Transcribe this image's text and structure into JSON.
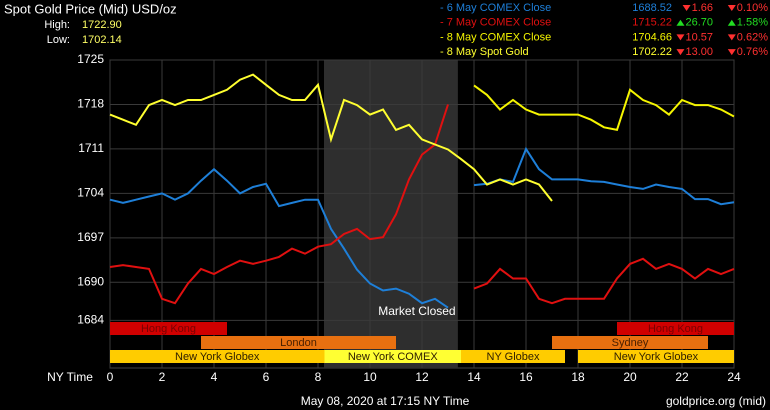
{
  "title": "Spot Gold Price (Mid) USD/oz",
  "high": {
    "label": "High:",
    "value": "1722.90"
  },
  "low": {
    "label": "Low:",
    "value": "1702.14"
  },
  "footer": {
    "timestamp": "May 08, 2020 at 17:15 NY Time",
    "source": "goldprice.org (mid)"
  },
  "chart_data": {
    "type": "line",
    "xlabel": "NY Time",
    "x": [
      0,
      0.5,
      1,
      1.5,
      2,
      2.5,
      3,
      3.5,
      4,
      4.5,
      5,
      5.5,
      6,
      6.5,
      7,
      7.5,
      8,
      8.5,
      9,
      9.5,
      10,
      10.5,
      11,
      11.5,
      12,
      12.5,
      13,
      13.5,
      14,
      14.5,
      15,
      15.5,
      16,
      16.5,
      17,
      17.5,
      18,
      18.5,
      19,
      19.5,
      20,
      20.5,
      21,
      21.5,
      22,
      22.5,
      23,
      23.5,
      24
    ],
    "xlim": [
      0,
      24
    ],
    "xticks": [
      0,
      2,
      4,
      6,
      8,
      10,
      12,
      14,
      16,
      18,
      20,
      22,
      24
    ],
    "ylim": [
      1676.5,
      1725
    ],
    "yticks": [
      1684,
      1690,
      1697,
      1704,
      1711,
      1718,
      1725
    ],
    "grid": true,
    "series": [
      {
        "name": "- 6 May COMEX Close",
        "color": "#1e7fd8",
        "price": "1688.52",
        "change": {
          "value": -1.66,
          "label": "1.66"
        },
        "percent": {
          "value": -0.1,
          "label": "0.10%"
        },
        "values": [
          1703,
          1702.5,
          1703,
          1703.5,
          1704,
          1703,
          1704,
          1706,
          1707.8,
          1706,
          1704,
          1705,
          1705.5,
          1702,
          1702.5,
          1703,
          1703,
          1698.4,
          1695.3,
          1692,
          1689.8,
          1688.7,
          1689,
          1688.2,
          1686.7,
          1687.4,
          1686,
          null,
          1705.3,
          1705.5,
          1706.2,
          1705.8,
          1711,
          1707.8,
          1706.2,
          1706.2,
          1706.2,
          1705.9,
          1705.8,
          1705.4,
          1705,
          1704.7,
          1705.4,
          1705,
          1704.7,
          1703.1,
          1703.1,
          1702.3,
          1702.6
        ]
      },
      {
        "name": "- 7 May COMEX Close",
        "color": "#e01010",
        "price": "1715.22",
        "change": {
          "value": 26.7,
          "label": "26.70"
        },
        "percent": {
          "value": 1.58,
          "label": "1.58%"
        },
        "values": [
          1692.4,
          1692.7,
          1692.4,
          1692.1,
          1687.4,
          1686.7,
          1689.8,
          1692.1,
          1691.3,
          1692.4,
          1693.4,
          1692.9,
          1693.4,
          1694,
          1695.3,
          1694.5,
          1695.6,
          1696,
          1697.6,
          1698.4,
          1696.8,
          1697.1,
          1700.7,
          1706.2,
          1710.1,
          1711.7,
          1718,
          null,
          1689,
          1689.8,
          1692.1,
          1690.6,
          1690.6,
          1687.4,
          1686.7,
          1687.4,
          1687.4,
          1687.4,
          1687.4,
          1690.6,
          1692.9,
          1693.7,
          1692.1,
          1692.9,
          1692.1,
          1690.6,
          1692.1,
          1691.3,
          1692.1
        ]
      },
      {
        "name": "- 8 May COMEX Close",
        "color": "#f5f500",
        "price": "1704.66",
        "change": {
          "value": -10.57,
          "label": "10.57"
        },
        "percent": {
          "value": -0.62,
          "label": "0.62%"
        },
        "values": [
          null,
          null,
          null,
          null,
          null,
          null,
          null,
          null,
          null,
          null,
          null,
          null,
          null,
          null,
          null,
          null,
          null,
          null,
          null,
          null,
          null,
          null,
          null,
          null,
          null,
          null,
          null,
          null,
          1721,
          1719.5,
          1717.2,
          1718.7,
          1717.2,
          1716.4,
          1716.4,
          1716.4,
          1716.4,
          1715.6,
          1714.4,
          1714,
          1720.3,
          1718.7,
          1717.9,
          1716.4,
          1718.7,
          1717.9,
          1717.9,
          1717.2,
          1716.1
        ]
      },
      {
        "name": "- 8 May Spot Gold",
        "color": "#ffff30",
        "price": "1702.22",
        "change": {
          "value": -13.0,
          "label": "13.00"
        },
        "percent": {
          "value": -0.76,
          "label": "0.76%"
        },
        "values": [
          1716.4,
          1715.6,
          1714.8,
          1717.9,
          1718.7,
          1717.9,
          1718.7,
          1718.7,
          1719.5,
          1720.3,
          1721.9,
          1722.7,
          1721.1,
          1719.5,
          1718.7,
          1718.7,
          1721.1,
          1712.5,
          1718.7,
          1717.9,
          1716.4,
          1717.2,
          1714,
          1714.8,
          1712.5,
          1711.7,
          1710.9,
          1709.4,
          1707.8,
          1705.4,
          1706.2,
          1705.4,
          1706.2,
          1705.4,
          1702.8,
          null,
          null,
          null,
          null,
          null,
          null,
          null,
          null,
          null,
          null,
          null,
          null,
          null,
          null
        ]
      }
    ],
    "shade": {
      "label": "Market Closed",
      "start": 8.23,
      "end": 13.38
    },
    "sessions": [
      [
        {
          "name": "Hong Kong",
          "start": 0,
          "end": 4.5,
          "color": "#d00000",
          "text_color": "#7a0000"
        },
        {
          "name": "Hong Kong",
          "start": 19.5,
          "end": 24,
          "color": "#d00000",
          "text_color": "#7a0000"
        }
      ],
      [
        {
          "name": "London",
          "start": 3.5,
          "end": 11,
          "color": "#e87010",
          "text_color": "#4a2000"
        },
        {
          "name": "Sydney",
          "start": 17,
          "end": 23,
          "color": "#e87010",
          "text_color": "#4a2000"
        }
      ],
      [
        {
          "name": "New York Globex",
          "start": 0,
          "end": 8.25,
          "color": "#ffcc00",
          "text_color": "#302000"
        },
        {
          "name": "New York COMEX",
          "start": 8.25,
          "end": 13.5,
          "color": "#ffff33",
          "text_color": "#302000"
        },
        {
          "name": "NY Globex",
          "start": 13.5,
          "end": 17.5,
          "color": "#ffcc00",
          "text_color": "#302000"
        },
        {
          "name": "New York Globex",
          "start": 18,
          "end": 24,
          "color": "#ffcc00",
          "text_color": "#302000"
        }
      ]
    ]
  }
}
